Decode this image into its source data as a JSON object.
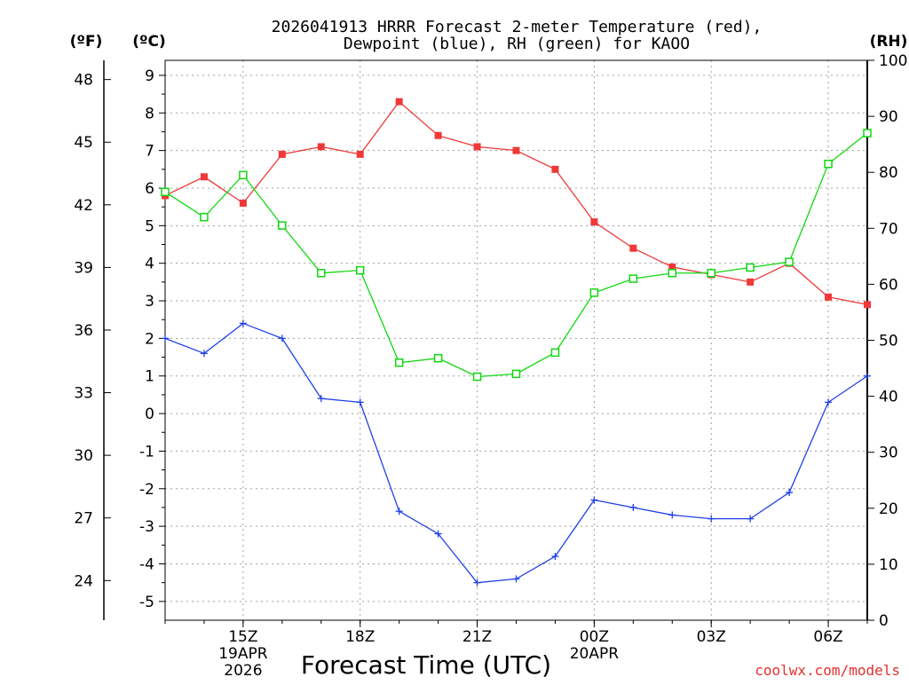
{
  "colors": {
    "temperature": "#f03838",
    "dewpoint": "#2040e8",
    "rh": "#10d810",
    "grid": "#a0a0a0",
    "credit": "#e03030"
  },
  "chart_data": {
    "type": "line",
    "title_line1": "2026041913 HRRR Forecast 2-meter Temperature (red),",
    "title_line2": "Dewpoint (blue), RH (green) for KAOO",
    "xlabel": "Forecast Time (UTC)",
    "credit": "coolwx.com/models",
    "left_unit_f": "(ºF)",
    "left_unit_c": "(ºC)",
    "right_unit": "(RH)",
    "x_hours": [
      13,
      14,
      15,
      16,
      17,
      18,
      19,
      20,
      21,
      22,
      23,
      24,
      25,
      26,
      27,
      28,
      29,
      30,
      31
    ],
    "x_range": [
      13,
      31
    ],
    "celsius_range": [
      -5.5,
      9.4
    ],
    "rh_range": [
      0,
      100
    ],
    "x_ticks": [
      {
        "hour": 15,
        "label": "15Z",
        "date": "19APR",
        "year": "2026"
      },
      {
        "hour": 18,
        "label": "18Z"
      },
      {
        "hour": 21,
        "label": "21Z"
      },
      {
        "hour": 24,
        "label": "00Z",
        "date": "20APR"
      },
      {
        "hour": 27,
        "label": "03Z"
      },
      {
        "hour": 30,
        "label": "06Z"
      }
    ],
    "celsius_ticks": [
      -5,
      -4,
      -3,
      -2,
      -1,
      0,
      1,
      2,
      3,
      4,
      5,
      6,
      7,
      8,
      9
    ],
    "fahrenheit_ticks": [
      24,
      27,
      30,
      33,
      36,
      39,
      42,
      45,
      48
    ],
    "rh_ticks": [
      0,
      10,
      20,
      30,
      40,
      50,
      60,
      70,
      80,
      90,
      100
    ],
    "series": [
      {
        "name": "Temperature",
        "unit": "C",
        "marker": "filled-square",
        "values": [
          5.8,
          6.3,
          5.6,
          6.9,
          7.1,
          6.9,
          8.3,
          7.4,
          7.1,
          7.0,
          6.5,
          5.1,
          4.4,
          3.9,
          3.7,
          3.5,
          4.0,
          3.1,
          2.9
        ]
      },
      {
        "name": "Dewpoint",
        "unit": "C",
        "marker": "plus",
        "values": [
          2.0,
          1.6,
          2.4,
          2.0,
          0.4,
          0.3,
          -2.6,
          -3.2,
          -4.5,
          -4.4,
          -3.8,
          -2.3,
          -2.5,
          -2.7,
          -2.8,
          -2.8,
          -2.1,
          0.3,
          1.0
        ]
      },
      {
        "name": "RH",
        "unit": "%",
        "marker": "open-square",
        "values": [
          76.5,
          72.0,
          79.5,
          70.5,
          62.0,
          62.5,
          46.0,
          46.8,
          43.5,
          44.0,
          47.8,
          58.5,
          61.0,
          62.0,
          62.0,
          63.0,
          64.0,
          81.5,
          87.0
        ]
      }
    ]
  }
}
